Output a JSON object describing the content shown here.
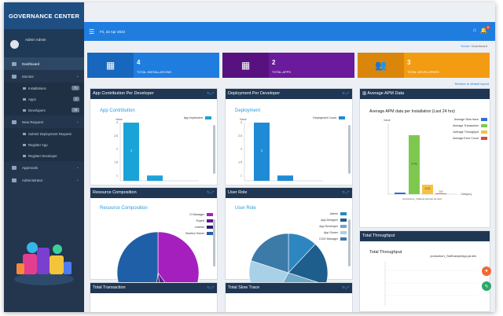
{
  "app": {
    "brand": "GOVERNANCE CENTER",
    "user": "Admin Admin"
  },
  "nav": {
    "dashboard": "Dashboard",
    "monitor": "Monitor",
    "installations": "Installations",
    "installations_count": "71",
    "apps": "Apps",
    "apps_count": "2",
    "developers": "Developers",
    "developers_count": "13",
    "new_request": "New Request",
    "submit": "Submit Deployment Request",
    "register_app": "Register App",
    "register_dev": "Register Developer",
    "approvals": "Approvals",
    "administrator": "Administrator"
  },
  "topbar": {
    "date": "Fri, 22 Apr 2022",
    "notifications": "8"
  },
  "breadcrumb": {
    "home": "Home",
    "sep": "/",
    "current": "Dashboard"
  },
  "stats": [
    {
      "num": "4",
      "label": "TOTAL INSTALLATIONS",
      "color": "#1f7de0"
    },
    {
      "num": "2",
      "label": "TOTAL APPS",
      "color": "#6a1a9a"
    },
    {
      "num": "3",
      "label": "TOTAL DEVELOPERS",
      "color": "#f39c12"
    }
  ],
  "restore_label": "Restore to default layout",
  "panels": {
    "app_contrib": "App Contribution Per Developer",
    "deploy": "Deployment Per Developer",
    "apm": "Average APM Data",
    "resource": "Resource Composition",
    "user_role": "User Role",
    "throughput": "Total Throughput",
    "transaction": "Total Transaction",
    "slow_trace": "Total Slow Trace"
  },
  "throughput_title": "Total Throughput",
  "throughput_legend": "production1_SwiExampleApp.jar.des",
  "charts": {
    "app_contrib": {
      "type": "bar",
      "title": "App Contribution",
      "ylabel": "Value",
      "legend": "App Implement",
      "color": "#1aa3d6",
      "yticks": [
        "1",
        "1.5",
        "2",
        "2.5",
        "3"
      ],
      "values": [
        3,
        1
      ],
      "bar_label": "3",
      "ylim": [
        0.8,
        3.0
      ]
    },
    "deploy": {
      "type": "bar",
      "title": "Deployment",
      "ylabel": "Value",
      "legend": "Deployment Count",
      "color": "#1f8ad6",
      "yticks": [
        "1",
        "1.5",
        "2",
        "2.5",
        "3"
      ],
      "values": [
        3,
        1
      ],
      "bar_label": "3",
      "ylim": [
        0.8,
        3.0
      ]
    },
    "apm": {
      "type": "bar",
      "title": "Average APM data per Installation (Last 24 hrs)",
      "ylabel": "Value",
      "xlabel": "Category",
      "series": [
        {
          "name": "Average Slow trace",
          "color": "#2f6fd0",
          "value": 0.02
        },
        {
          "name": "Average Transaction",
          "color": "#7ec850",
          "value": 0.75
        },
        {
          "name": "Average Throughput",
          "color": "#f5c242",
          "value": 0.12
        },
        {
          "name": "Average Error Count",
          "color": "#e0483c",
          "value": 0
        }
      ],
      "bar_labels": [
        "0.75",
        "0.12",
        "0.0"
      ],
      "category": "production1_SwiExampleApp.jar.desc",
      "ylim": [
        0,
        0.9
      ]
    },
    "resource": {
      "type": "pie",
      "title": "Resource Composition",
      "slices": [
        {
          "name": "CI Manager",
          "value": 40,
          "color": "#a51fbf"
        },
        {
          "name": "Expert",
          "value": 8,
          "color": "#5a1a8c"
        },
        {
          "name": "Learner",
          "value": 4,
          "color": "#2a1e6b"
        },
        {
          "name": "Solution Solver",
          "value": 48,
          "color": "#1f5fa8"
        }
      ]
    },
    "user_role": {
      "type": "pie",
      "title": "User Role",
      "slices": [
        {
          "name": "Admin",
          "value": 12,
          "color": "#2e86c1"
        },
        {
          "name": "App Designer",
          "value": 18,
          "color": "#1e5e8c"
        },
        {
          "name": "App Developer",
          "value": 28,
          "color": "#6fa8c8"
        },
        {
          "name": "App Owner",
          "value": 22,
          "color": "#a8d0e6"
        },
        {
          "name": "CICD Manager",
          "value": 20,
          "color": "#3c7aa8"
        }
      ]
    }
  }
}
